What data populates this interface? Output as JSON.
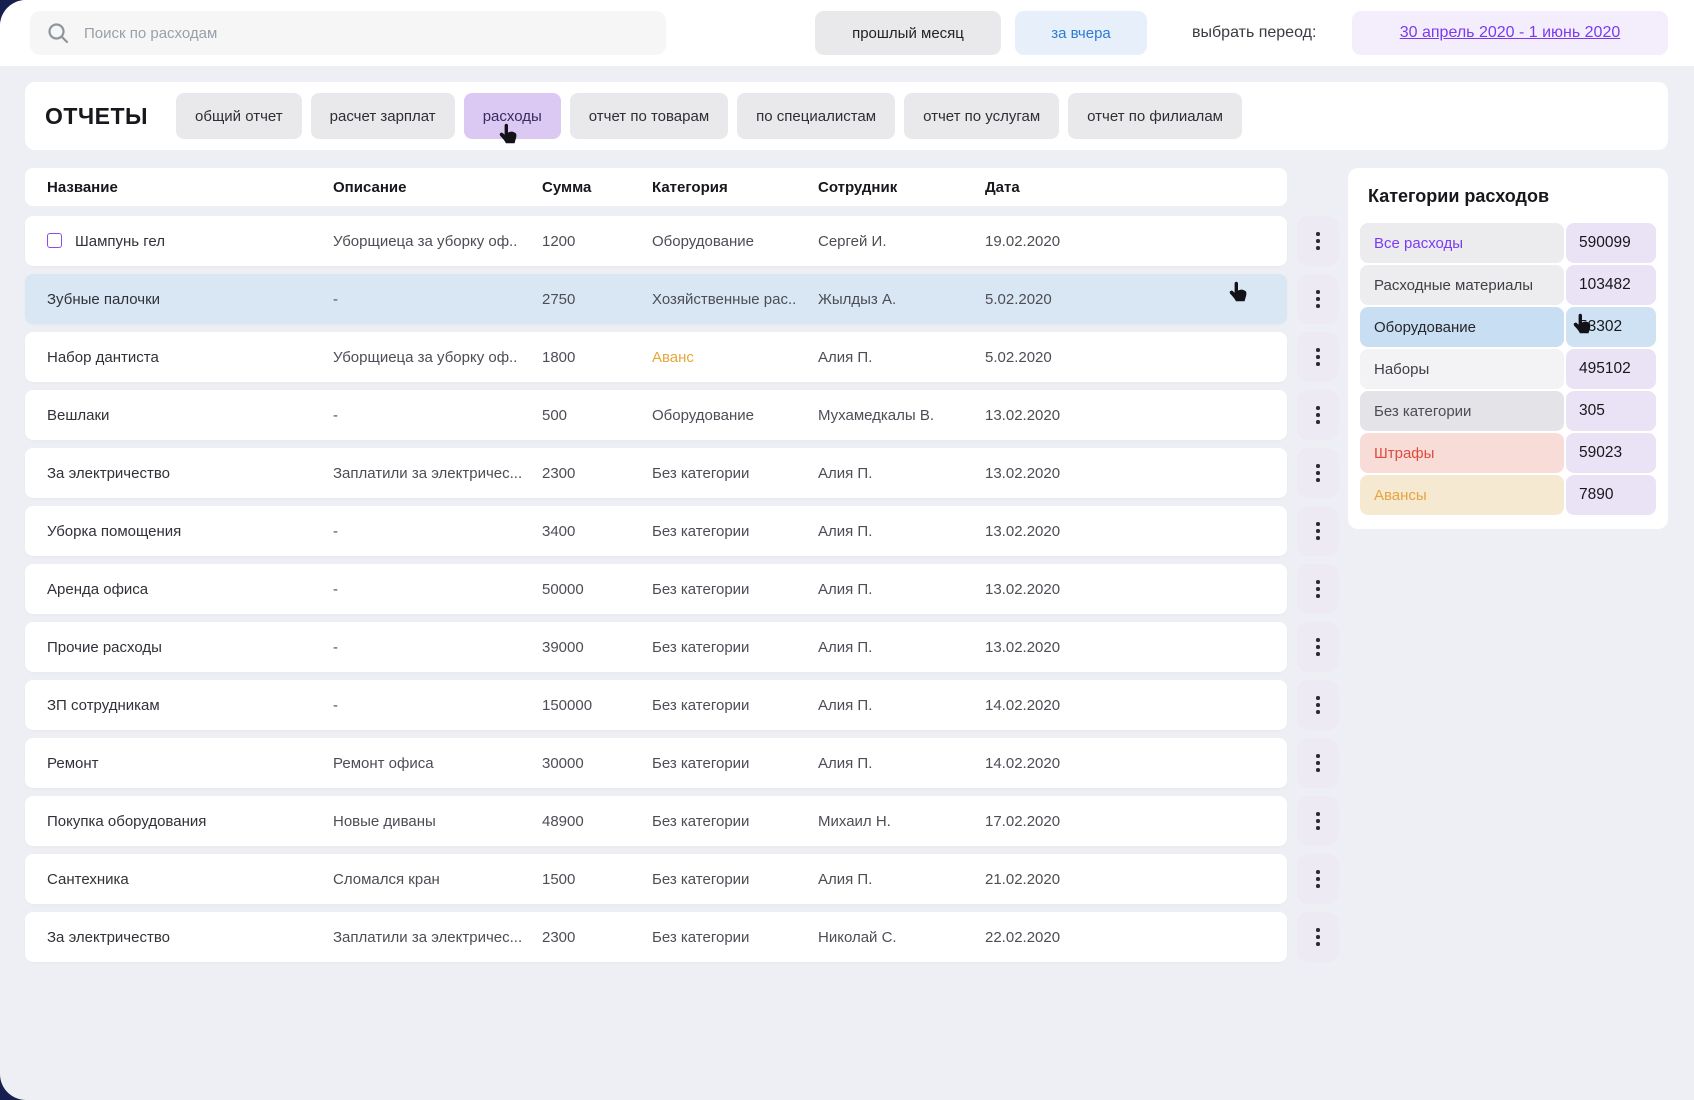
{
  "topbar": {
    "search_placeholder": "Поиск по расходам",
    "last_month_label": "прошлый месяц",
    "yesterday_label": "за вчера",
    "period_label": "выбрать переод:",
    "period_value": "30 апрель 2020 - 1 июнь 2020"
  },
  "reports": {
    "title": "ОТЧЕТЫ",
    "tabs": [
      {
        "label": "общий отчет",
        "active": false
      },
      {
        "label": "расчет зарплат",
        "active": false
      },
      {
        "label": "расходы",
        "active": true
      },
      {
        "label": "отчет по товарам",
        "active": false
      },
      {
        "label": "по специалистам",
        "active": false
      },
      {
        "label": "отчет по услугам",
        "active": false
      },
      {
        "label": "отчет по филиалам",
        "active": false
      }
    ]
  },
  "table": {
    "columns": [
      "Название",
      "Описание",
      "Сумма",
      "Категория",
      "Сотрудник",
      "Дата"
    ],
    "rows": [
      {
        "name": "Шампунь гел",
        "checkbox": true,
        "description": "Уборщиеца за уборку оф..",
        "amount": "1200",
        "category": "Оборудование",
        "employee": "Сергей И.",
        "date": "19.02.2020"
      },
      {
        "name": "Зубные палочки",
        "description": "-",
        "amount": "2750",
        "category": "Хозяйственные рас..",
        "employee": "Жылдыз А.",
        "date": "5.02.2020",
        "highlighted": true
      },
      {
        "name": "Набор дантиста",
        "description": "Уборщиеца за уборку оф..",
        "amount": "1800",
        "category": "Аванс",
        "category_style": "advance",
        "employee": "Алия П.",
        "date": "5.02.2020"
      },
      {
        "name": "Вешлаки",
        "description": "-",
        "amount": "500",
        "category": "Оборудование",
        "employee": "Мухамедкалы В.",
        "date": "13.02.2020"
      },
      {
        "name": "За электричество",
        "description": "Заплатили за электричес...",
        "amount": "2300",
        "category": "Без категории",
        "employee": "Алия П.",
        "date": "13.02.2020"
      },
      {
        "name": "Уборка помощения",
        "description": "-",
        "amount": "3400",
        "category": "Без категории",
        "employee": "Алия П.",
        "date": "13.02.2020"
      },
      {
        "name": "Аренда офиса",
        "description": "-",
        "amount": "50000",
        "category": "Без категории",
        "employee": "Алия П.",
        "date": "13.02.2020"
      },
      {
        "name": "Прочие расходы",
        "description": "-",
        "amount": "39000",
        "category": "Без категории",
        "employee": "Алия П.",
        "date": "13.02.2020"
      },
      {
        "name": "ЗП сотрудникам",
        "description": "-",
        "amount": "150000",
        "category": "Без категории",
        "employee": "Алия П.",
        "date": "14.02.2020"
      },
      {
        "name": "Ремонт",
        "description": "Ремонт офиса",
        "amount": "30000",
        "category": "Без категории",
        "employee": "Алия П.",
        "date": "14.02.2020"
      },
      {
        "name": "Покупка оборудования",
        "description": "Новые диваны",
        "amount": "48900",
        "category": "Без категории",
        "employee": "Михаил Н.",
        "date": "17.02.2020"
      },
      {
        "name": "Сантехника",
        "description": "Сломался кран",
        "amount": "1500",
        "category": "Без категории",
        "employee": "Алия П.",
        "date": "21.02.2020"
      },
      {
        "name": "За электричество",
        "description": "Заплатили за электричес...",
        "amount": "2300",
        "category": "Без категории",
        "employee": "Николай С.",
        "date": "22.02.2020"
      }
    ]
  },
  "sidebar": {
    "title": "Категории расходов",
    "items": [
      {
        "label": "Все расходы",
        "value": "590099",
        "style": "all"
      },
      {
        "label": "Расходные материалы",
        "value": "103482",
        "style": "default"
      },
      {
        "label": "Оборудование",
        "value": "53302",
        "style": "selected"
      },
      {
        "label": "Наборы",
        "value": "495102",
        "style": "light"
      },
      {
        "label": "Без категории",
        "value": "305",
        "style": "grey"
      },
      {
        "label": "Штрафы",
        "value": "59023",
        "style": "danger"
      },
      {
        "label": "Авансы",
        "value": "7890",
        "style": "warning"
      }
    ]
  },
  "colors": {
    "accent_purple": "#7b3bf5",
    "active_tab_bg": "#dcc9f3",
    "link_blue": "#2d7cd4",
    "selected_row_bg": "#d9e7f5",
    "advance_orange": "#e8a63c",
    "danger_red": "#e14b3e",
    "page_bg": "#edeff4"
  }
}
